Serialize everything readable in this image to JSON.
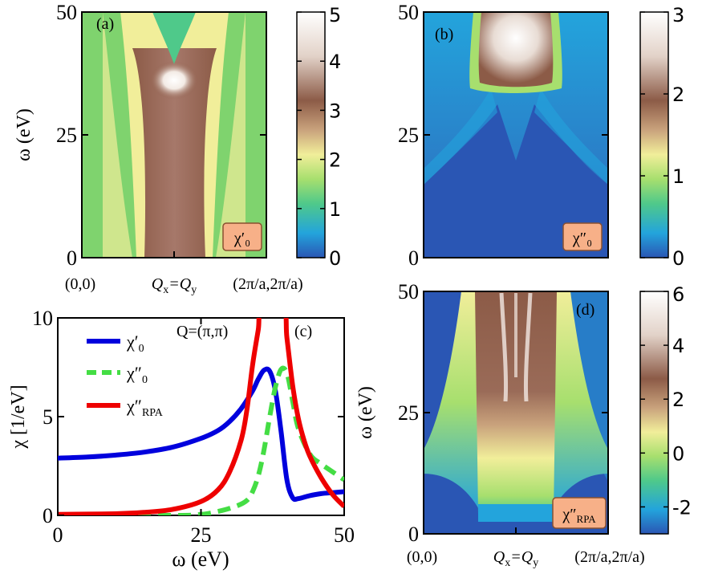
{
  "chart_data": [
    {
      "type": "heatmap",
      "panel": "(a)",
      "ylabel": "ω (eV)",
      "ylim": [
        0,
        50
      ],
      "yticks": [
        "0",
        "25",
        "50"
      ],
      "xticks": [
        "(0,0)",
        "Q_x=Q_y",
        "(2π/a,2π/a)"
      ],
      "inset_label": "χ′0",
      "colorbar": {
        "min": 0,
        "max": 5,
        "ticks": [
          "0",
          "1",
          "2",
          "3",
          "4",
          "5"
        ]
      },
      "colormap": [
        "#2a56b4",
        "#23a4dc",
        "#4fc98a",
        "#a7df6e",
        "#f1ee9a",
        "#c9a27c",
        "#8c5b47",
        "#e2d2c8",
        "#ffffff"
      ],
      "features": "bright maximum near ω≈38 eV at the zone center, funnel-shaped region of χ′0≈3 between ω≈0 and 45 eV, green dip at ω≈42–50 eV near center"
    },
    {
      "type": "heatmap",
      "panel": "(b)",
      "ylim": [
        0,
        50
      ],
      "yticks": [
        "0",
        "25",
        "50"
      ],
      "inset_label": "χ″0",
      "colorbar": {
        "min": 0,
        "max": 3,
        "ticks": [
          "0",
          "1",
          "2",
          "3"
        ]
      },
      "colormap": [
        "#2a56b4",
        "#23a4dc",
        "#4fc98a",
        "#a7df6e",
        "#f1ee9a",
        "#c9a27c",
        "#8c5b47",
        "#e2d2c8",
        "#ffffff"
      ],
      "features": "strong spectral weight for ω>35 eV near center, weak blue background below, particle-hole continuum edges"
    },
    {
      "type": "line",
      "panel": "(c)",
      "annotation": "Q=(π,π)",
      "xlabel": "ω (eV)",
      "ylabel": "χ [1/eV]",
      "xlim": [
        0,
        50
      ],
      "ylim": [
        0,
        10
      ],
      "xticks": [
        "0",
        "25",
        "50"
      ],
      "yticks": [
        "0",
        "5",
        "10"
      ],
      "series": [
        {
          "name": "χ′0",
          "color": "#0000dd",
          "style": "solid",
          "x": [
            0,
            5,
            10,
            15,
            20,
            25,
            28,
            30,
            32,
            34,
            35,
            36,
            37,
            38,
            39,
            40,
            41,
            42,
            44,
            46,
            48,
            50
          ],
          "y": [
            2.9,
            2.95,
            3.05,
            3.2,
            3.45,
            3.9,
            4.3,
            4.75,
            5.4,
            6.3,
            6.9,
            7.35,
            7.3,
            6.3,
            4.2,
            1.8,
            0.9,
            0.85,
            1.0,
            1.1,
            1.15,
            1.2
          ]
        },
        {
          "name": "χ″0",
          "color": "#44dd44",
          "style": "dashed",
          "x": [
            0,
            20,
            25,
            28,
            31,
            33,
            34,
            35,
            36,
            37,
            38,
            39,
            40,
            41,
            42,
            44,
            46,
            48,
            50
          ],
          "y": [
            0,
            0,
            0.05,
            0.2,
            0.45,
            0.75,
            1.2,
            2.0,
            3.3,
            5.0,
            6.5,
            7.4,
            7.2,
            5.8,
            4.4,
            3.1,
            2.6,
            2.2,
            1.8
          ]
        },
        {
          "name": "χ″RPA",
          "color": "#ee0000",
          "style": "solid",
          "x": [
            0,
            10,
            15,
            20,
            25,
            28,
            30,
            32,
            33,
            34,
            35,
            35.6,
            39.4,
            40,
            41,
            42,
            43,
            44,
            46,
            48,
            50
          ],
          "y": [
            0.05,
            0.08,
            0.15,
            0.3,
            0.7,
            1.3,
            2.2,
            3.8,
            5.3,
            7.6,
            9.4,
            10.5,
            10.5,
            9.0,
            6.6,
            4.9,
            3.8,
            3.0,
            1.9,
            1.05,
            0.45
          ]
        }
      ]
    },
    {
      "type": "heatmap",
      "panel": "(d)",
      "ylabel": "ω (eV)",
      "ylim": [
        0,
        50
      ],
      "yticks": [
        "0",
        "25",
        "50"
      ],
      "xticks": [
        "(0,0)",
        "Q_x=Q_y",
        "(2π/a,2π/a)"
      ],
      "inset_label": "χ″RPA",
      "colorbar": {
        "min": -3,
        "max": 6,
        "ticks": [
          "-2",
          "0",
          "2",
          "4",
          "6"
        ]
      },
      "colormap": [
        "#2a56b4",
        "#23a4dc",
        "#4fc98a",
        "#a7df6e",
        "#f1ee9a",
        "#c9a27c",
        "#8c5b47",
        "#e2d2c8",
        "#ffffff"
      ],
      "features": "broad brown band above ω≈20 eV between momenta 0.35 and 0.65, bright streaks near center, yellow/green wings extending to zone edges, blue low-energy region"
    }
  ]
}
